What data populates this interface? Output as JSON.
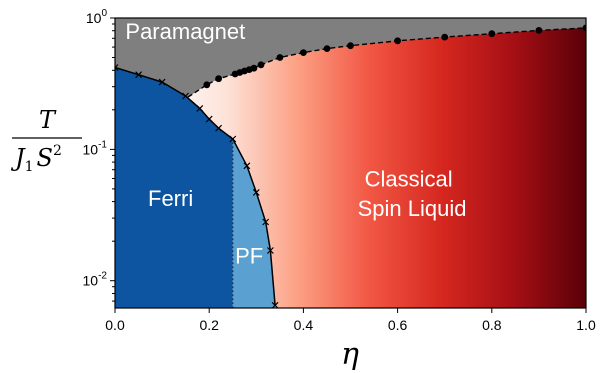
{
  "chart_data": {
    "type": "phase-diagram",
    "xlabel": "η",
    "ylabel": {
      "numerator": "T",
      "denominator": "J",
      "subscript": "1",
      "base": "S",
      "superscript": "2"
    },
    "xlim": [
      0,
      1
    ],
    "ylim": [
      0.0062,
      1.0
    ],
    "y_scale": "log",
    "x_ticks": [
      "0.0",
      "0.2",
      "0.4",
      "0.6",
      "0.8",
      "1.0"
    ],
    "x_tick_values": [
      0,
      0.2,
      0.4,
      0.6,
      0.8,
      1.0
    ],
    "y_ticks": [
      {
        "value": 0.01,
        "base": "10",
        "exp": "-2"
      },
      {
        "value": 0.1,
        "base": "10",
        "exp": "-1"
      },
      {
        "value": 1,
        "base": "10",
        "exp": "0"
      }
    ],
    "regions": [
      {
        "name": "Paramagnet",
        "color": "#7f7f7f",
        "label_at": [
          0.022,
          0.69
        ]
      },
      {
        "name": "Ferri",
        "color": "#0d55a0",
        "label_at": [
          0.07,
          0.037
        ]
      },
      {
        "name": "PF",
        "color": "#5aa0d0",
        "label_at": [
          0.255,
          0.0135
        ]
      },
      {
        "name": "Classical",
        "color": "#ffffff",
        "label_at": [
          0.53,
          0.052
        ]
      },
      {
        "name": "Spin Liquid",
        "color": "#ffffff",
        "label_at": [
          0.515,
          0.031
        ]
      }
    ],
    "paramagnet_boundary": {
      "style": "dashed",
      "marker": "circle",
      "x": [
        0.155,
        0.195,
        0.22,
        0.255,
        0.265,
        0.275,
        0.285,
        0.295,
        0.31,
        0.35,
        0.4,
        0.45,
        0.5,
        0.6,
        0.7,
        0.8,
        0.9,
        1.0
      ],
      "y": [
        0.25,
        0.31,
        0.345,
        0.375,
        0.385,
        0.395,
        0.405,
        0.415,
        0.44,
        0.5,
        0.545,
        0.585,
        0.615,
        0.67,
        0.715,
        0.76,
        0.805,
        0.84
      ]
    },
    "ferri_boundary": {
      "style": "solid",
      "marker": "x",
      "x": [
        0.0,
        0.05,
        0.1,
        0.15,
        0.18,
        0.2,
        0.22,
        0.25,
        0.28,
        0.3,
        0.32,
        0.33,
        0.34
      ],
      "y": [
        0.42,
        0.37,
        0.325,
        0.255,
        0.205,
        0.17,
        0.145,
        0.12,
        0.075,
        0.047,
        0.028,
        0.017,
        0.0065
      ]
    },
    "pf_boundary": {
      "style": "dotted",
      "x": 0.25,
      "y_from": 0.0062,
      "y_to": 0.12
    },
    "classical_spin_liquid_gradient": [
      "#ffffff",
      "#fde2d8",
      "#fc9f83",
      "#f15643",
      "#d5271f",
      "#a50f15",
      "#5a0008"
    ]
  }
}
